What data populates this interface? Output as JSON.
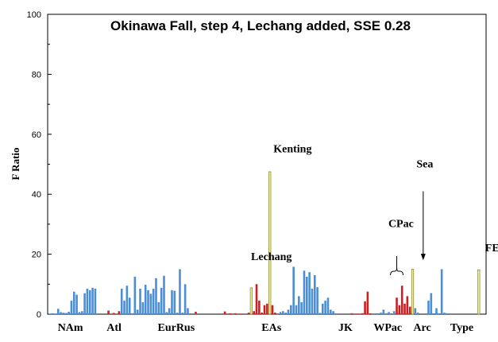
{
  "chart_data": {
    "type": "bar",
    "title": "Okinawa Fall, step 4, Lechang added, SSE 0.28",
    "xlabel": "",
    "ylabel": "F Ratio",
    "ylim": [
      0,
      100
    ],
    "yticks": [
      0,
      20,
      40,
      60,
      80,
      100
    ],
    "colors": {
      "blue": "#4a8fd6",
      "red": "#cc1f1f",
      "yellow": "#f4f08a"
    },
    "group_labels": [
      {
        "text": "NAm",
        "x": 8
      },
      {
        "text": "Atl",
        "x": 24.5
      },
      {
        "text": "EurRus",
        "x": 48
      },
      {
        "text": "EAs",
        "x": 84
      },
      {
        "text": "JK",
        "x": 112
      },
      {
        "text": "WPac",
        "x": 128
      },
      {
        "text": "Arc",
        "x": 141
      },
      {
        "text": "Type",
        "x": 156
      }
    ],
    "annotations": [
      {
        "text": "Kenting",
        "x": 92,
        "y": 54
      },
      {
        "text": "Lechang",
        "x": 84,
        "y": 18
      },
      {
        "text": "CPac",
        "x": 133,
        "y": 29
      },
      {
        "text": "Sea",
        "x": 142,
        "y": 49
      },
      {
        "text": "FEC",
        "x": 169,
        "y": 21
      }
    ],
    "arrow": {
      "from": [
        141,
        41
      ],
      "to": [
        141,
        18
      ]
    },
    "brace": {
      "x_from": 129,
      "x_to": 133,
      "y": 13
    },
    "bars": [
      {
        "x": 0,
        "value": 0.2,
        "color": "blue"
      },
      {
        "x": 1,
        "value": 0.3,
        "color": "blue"
      },
      {
        "x": 2,
        "value": 0.2,
        "color": "blue"
      },
      {
        "x": 3,
        "value": 1.8,
        "color": "blue"
      },
      {
        "x": 4,
        "value": 0.7,
        "color": "blue"
      },
      {
        "x": 5,
        "value": 0.5,
        "color": "blue"
      },
      {
        "x": 6,
        "value": 0.4,
        "color": "blue"
      },
      {
        "x": 7,
        "value": 0.8,
        "color": "blue"
      },
      {
        "x": 8,
        "value": 4.5,
        "color": "blue"
      },
      {
        "x": 9,
        "value": 7.5,
        "color": "blue"
      },
      {
        "x": 10,
        "value": 6.5,
        "color": "blue"
      },
      {
        "x": 11,
        "value": 0.7,
        "color": "blue"
      },
      {
        "x": 12,
        "value": 1.0,
        "color": "blue"
      },
      {
        "x": 13,
        "value": 7.0,
        "color": "blue"
      },
      {
        "x": 14,
        "value": 8.5,
        "color": "blue"
      },
      {
        "x": 15,
        "value": 8.0,
        "color": "blue"
      },
      {
        "x": 16,
        "value": 8.8,
        "color": "blue"
      },
      {
        "x": 17,
        "value": 8.5,
        "color": "blue"
      },
      {
        "x": 22,
        "value": 1.2,
        "color": "red"
      },
      {
        "x": 24,
        "value": 0.4,
        "color": "red"
      },
      {
        "x": 26,
        "value": 1.0,
        "color": "red"
      },
      {
        "x": 27,
        "value": 8.5,
        "color": "blue"
      },
      {
        "x": 28,
        "value": 4.5,
        "color": "blue"
      },
      {
        "x": 29,
        "value": 9.5,
        "color": "blue"
      },
      {
        "x": 30,
        "value": 5.5,
        "color": "blue"
      },
      {
        "x": 32,
        "value": 12.5,
        "color": "blue"
      },
      {
        "x": 33,
        "value": 1.5,
        "color": "blue"
      },
      {
        "x": 34,
        "value": 8.5,
        "color": "blue"
      },
      {
        "x": 35,
        "value": 4.0,
        "color": "blue"
      },
      {
        "x": 36,
        "value": 9.8,
        "color": "blue"
      },
      {
        "x": 37,
        "value": 8.0,
        "color": "blue"
      },
      {
        "x": 38,
        "value": 6.8,
        "color": "blue"
      },
      {
        "x": 39,
        "value": 8.5,
        "color": "blue"
      },
      {
        "x": 40,
        "value": 12.0,
        "color": "blue"
      },
      {
        "x": 41,
        "value": 4.0,
        "color": "blue"
      },
      {
        "x": 42,
        "value": 8.8,
        "color": "blue"
      },
      {
        "x": 43,
        "value": 12.8,
        "color": "blue"
      },
      {
        "x": 44,
        "value": 0.7,
        "color": "blue"
      },
      {
        "x": 45,
        "value": 2.0,
        "color": "blue"
      },
      {
        "x": 46,
        "value": 8.0,
        "color": "blue"
      },
      {
        "x": 47,
        "value": 7.8,
        "color": "blue"
      },
      {
        "x": 48,
        "value": 0.5,
        "color": "blue"
      },
      {
        "x": 49,
        "value": 15.0,
        "color": "blue"
      },
      {
        "x": 50,
        "value": 0.5,
        "color": "blue"
      },
      {
        "x": 51,
        "value": 10.0,
        "color": "blue"
      },
      {
        "x": 52,
        "value": 2.0,
        "color": "blue"
      },
      {
        "x": 55,
        "value": 0.8,
        "color": "red"
      },
      {
        "x": 66,
        "value": 0.9,
        "color": "red"
      },
      {
        "x": 68,
        "value": 0.3,
        "color": "red"
      },
      {
        "x": 70,
        "value": 0.3,
        "color": "red"
      },
      {
        "x": 72,
        "value": 0.2,
        "color": "red"
      },
      {
        "x": 75,
        "value": 0.5,
        "color": "red"
      },
      {
        "x": 76,
        "value": 8.8,
        "color": "yellow"
      },
      {
        "x": 77,
        "value": 1.0,
        "color": "red"
      },
      {
        "x": 78,
        "value": 10.0,
        "color": "red"
      },
      {
        "x": 79,
        "value": 4.5,
        "color": "red"
      },
      {
        "x": 80,
        "value": 0.5,
        "color": "red"
      },
      {
        "x": 81,
        "value": 3.0,
        "color": "red"
      },
      {
        "x": 82,
        "value": 3.5,
        "color": "red"
      },
      {
        "x": 83,
        "value": 47.5,
        "color": "yellow"
      },
      {
        "x": 84,
        "value": 3.0,
        "color": "red"
      },
      {
        "x": 85,
        "value": 0.5,
        "color": "red"
      },
      {
        "x": 87,
        "value": 0.7,
        "color": "blue"
      },
      {
        "x": 88,
        "value": 1.0,
        "color": "blue"
      },
      {
        "x": 89,
        "value": 0.5,
        "color": "blue"
      },
      {
        "x": 90,
        "value": 1.5,
        "color": "blue"
      },
      {
        "x": 91,
        "value": 3.0,
        "color": "blue"
      },
      {
        "x": 92,
        "value": 15.8,
        "color": "blue"
      },
      {
        "x": 93,
        "value": 3.0,
        "color": "blue"
      },
      {
        "x": 94,
        "value": 6.0,
        "color": "blue"
      },
      {
        "x": 95,
        "value": 4.0,
        "color": "blue"
      },
      {
        "x": 96,
        "value": 14.5,
        "color": "blue"
      },
      {
        "x": 97,
        "value": 12.5,
        "color": "blue"
      },
      {
        "x": 98,
        "value": 14.0,
        "color": "blue"
      },
      {
        "x": 99,
        "value": 8.5,
        "color": "blue"
      },
      {
        "x": 100,
        "value": 13.0,
        "color": "blue"
      },
      {
        "x": 101,
        "value": 9.0,
        "color": "blue"
      },
      {
        "x": 102,
        "value": 0.4,
        "color": "blue"
      },
      {
        "x": 103,
        "value": 3.5,
        "color": "blue"
      },
      {
        "x": 104,
        "value": 4.5,
        "color": "blue"
      },
      {
        "x": 105,
        "value": 5.5,
        "color": "blue"
      },
      {
        "x": 106,
        "value": 1.5,
        "color": "blue"
      },
      {
        "x": 107,
        "value": 1.0,
        "color": "blue"
      },
      {
        "x": 114,
        "value": 0.3,
        "color": "red"
      },
      {
        "x": 116,
        "value": 0.2,
        "color": "red"
      },
      {
        "x": 118,
        "value": 0.3,
        "color": "red"
      },
      {
        "x": 119,
        "value": 4.3,
        "color": "red"
      },
      {
        "x": 120,
        "value": 7.5,
        "color": "red"
      },
      {
        "x": 121,
        "value": 0.3,
        "color": "red"
      },
      {
        "x": 123,
        "value": 0.3,
        "color": "blue"
      },
      {
        "x": 125,
        "value": 0.5,
        "color": "blue"
      },
      {
        "x": 126,
        "value": 1.5,
        "color": "blue"
      },
      {
        "x": 128,
        "value": 0.7,
        "color": "blue"
      },
      {
        "x": 130,
        "value": 1.0,
        "color": "blue"
      },
      {
        "x": 131,
        "value": 5.5,
        "color": "red"
      },
      {
        "x": 132,
        "value": 3.0,
        "color": "red"
      },
      {
        "x": 133,
        "value": 9.5,
        "color": "red"
      },
      {
        "x": 134,
        "value": 3.5,
        "color": "red"
      },
      {
        "x": 135,
        "value": 6.0,
        "color": "red"
      },
      {
        "x": 136,
        "value": 2.5,
        "color": "red"
      },
      {
        "x": 137,
        "value": 15.0,
        "color": "yellow"
      },
      {
        "x": 138,
        "value": 2.0,
        "color": "blue"
      },
      {
        "x": 139,
        "value": 0.5,
        "color": "blue"
      },
      {
        "x": 143,
        "value": 4.5,
        "color": "blue"
      },
      {
        "x": 144,
        "value": 7.0,
        "color": "blue"
      },
      {
        "x": 145,
        "value": 0.3,
        "color": "blue"
      },
      {
        "x": 146,
        "value": 2.0,
        "color": "blue"
      },
      {
        "x": 147,
        "value": 0.3,
        "color": "blue"
      },
      {
        "x": 148,
        "value": 15.0,
        "color": "blue"
      },
      {
        "x": 149,
        "value": 0.5,
        "color": "blue"
      },
      {
        "x": 150,
        "value": 0.3,
        "color": "blue"
      },
      {
        "x": 162,
        "value": 14.8,
        "color": "yellow"
      }
    ]
  }
}
